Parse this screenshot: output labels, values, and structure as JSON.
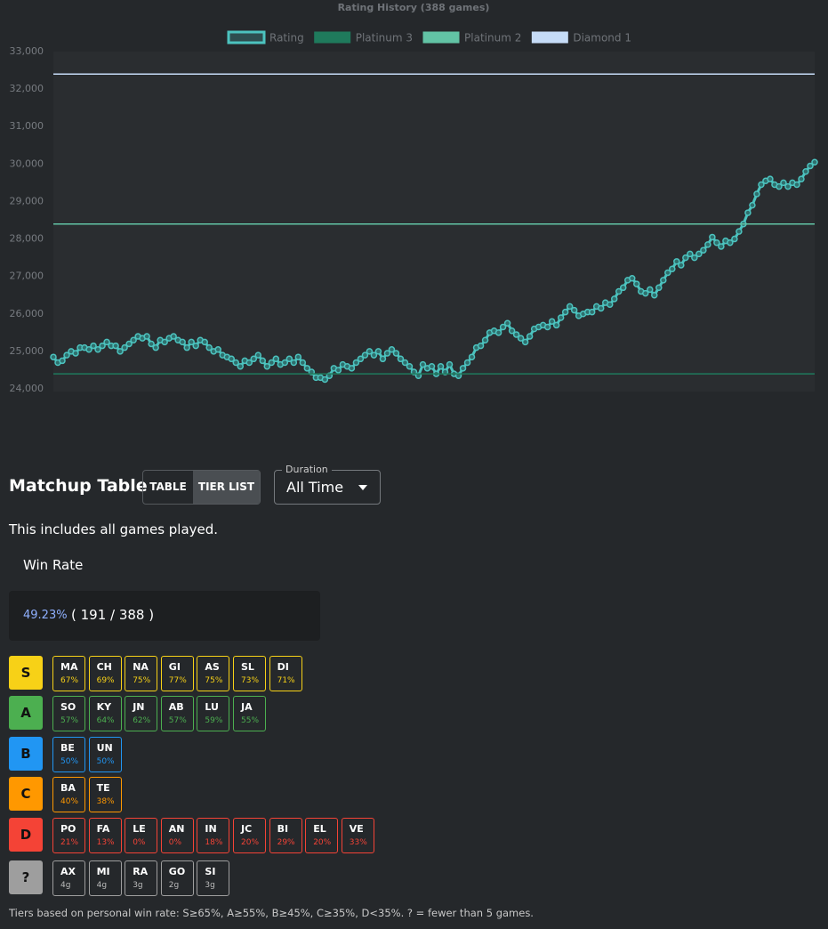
{
  "chart_data": {
    "type": "line",
    "title": "Rating History (388 games)",
    "ylim": [
      24000,
      33000
    ],
    "yticks": [
      {
        "value": 24000,
        "label": "24,000"
      },
      {
        "value": 25000,
        "label": "25,000"
      },
      {
        "value": 26000,
        "label": "26,000"
      },
      {
        "value": 27000,
        "label": "27,000"
      },
      {
        "value": 28000,
        "label": "28,000"
      },
      {
        "value": 29000,
        "label": "29,000"
      },
      {
        "value": 30000,
        "label": "30,000"
      },
      {
        "value": 31000,
        "label": "31,000"
      },
      {
        "value": 32000,
        "label": "32,000"
      },
      {
        "value": 33000,
        "label": "33,000"
      }
    ],
    "series": [
      {
        "name": "Rating",
        "color": "#4cc3bf",
        "values": [
          24850,
          24700,
          24750,
          24900,
          25000,
          24950,
          25100,
          25100,
          25050,
          25150,
          25050,
          25150,
          25250,
          25150,
          25150,
          25000,
          25100,
          25200,
          25300,
          25400,
          25350,
          25400,
          25200,
          25100,
          25300,
          25250,
          25350,
          25400,
          25300,
          25250,
          25100,
          25250,
          25150,
          25300,
          25250,
          25100,
          25000,
          25050,
          24900,
          24850,
          24800,
          24700,
          24600,
          24750,
          24700,
          24800,
          24900,
          24750,
          24600,
          24700,
          24800,
          24650,
          24700,
          24800,
          24700,
          24850,
          24700,
          24550,
          24450,
          24300,
          24300,
          24250,
          24350,
          24550,
          24500,
          24650,
          24600,
          24550,
          24700,
          24800,
          24900,
          25000,
          24900,
          25000,
          24800,
          24950,
          25050,
          24950,
          24800,
          24700,
          24600,
          24450,
          24350,
          24650,
          24550,
          24600,
          24400,
          24600,
          24450,
          24650,
          24400,
          24350,
          24550,
          24700,
          24850,
          25100,
          25150,
          25300,
          25500,
          25550,
          25500,
          25650,
          25750,
          25550,
          25450,
          25350,
          25250,
          25400,
          25600,
          25650,
          25700,
          25650,
          25800,
          25700,
          25900,
          26050,
          26200,
          26100,
          25950,
          26000,
          26050,
          26050,
          26200,
          26150,
          26300,
          26250,
          26400,
          26600,
          26700,
          26900,
          26950,
          26800,
          26600,
          26550,
          26650,
          26500,
          26700,
          26900,
          27100,
          27200,
          27400,
          27300,
          27500,
          27600,
          27500,
          27600,
          27700,
          27850,
          28050,
          27900,
          27800,
          27950,
          27900,
          28000,
          28200,
          28400,
          28700,
          28900,
          29200,
          29450,
          29550,
          29600,
          29450,
          29400,
          29500,
          29400,
          29500,
          29450,
          29600,
          29800,
          29950,
          30050
        ]
      },
      {
        "name": "Platinum 3",
        "color": "#1f7a5c",
        "value": 24400
      },
      {
        "name": "Platinum 2",
        "color": "#62c3a5",
        "value": 28400
      },
      {
        "name": "Diamond 1",
        "color": "#c6dcf7",
        "value": 32400
      }
    ],
    "grid": false
  },
  "matchup": {
    "title": "Matchup Table",
    "toggle": [
      "TABLE",
      "TIER LIST"
    ],
    "duration_label": "Duration",
    "duration_value": "All Time",
    "note": "This includes all games played.",
    "win_rate_label": "Win Rate",
    "win_rate_pct": "49.23%",
    "win_rate_record": "( 191 / 388 )",
    "tiers": [
      {
        "label": "S",
        "color": "#f7d117",
        "chips": [
          {
            "code": "MA",
            "stat": "67%"
          },
          {
            "code": "CH",
            "stat": "69%"
          },
          {
            "code": "NA",
            "stat": "75%"
          },
          {
            "code": "GI",
            "stat": "77%"
          },
          {
            "code": "AS",
            "stat": "75%"
          },
          {
            "code": "SL",
            "stat": "73%"
          },
          {
            "code": "DI",
            "stat": "71%"
          }
        ]
      },
      {
        "label": "A",
        "color": "#4caf50",
        "chips": [
          {
            "code": "SO",
            "stat": "57%"
          },
          {
            "code": "KY",
            "stat": "64%"
          },
          {
            "code": "JN",
            "stat": "62%"
          },
          {
            "code": "AB",
            "stat": "57%"
          },
          {
            "code": "LU",
            "stat": "59%"
          },
          {
            "code": "JA",
            "stat": "55%"
          }
        ]
      },
      {
        "label": "B",
        "color": "#2196f3",
        "chips": [
          {
            "code": "BE",
            "stat": "50%"
          },
          {
            "code": "UN",
            "stat": "50%"
          }
        ]
      },
      {
        "label": "C",
        "color": "#ff9800",
        "chips": [
          {
            "code": "BA",
            "stat": "40%"
          },
          {
            "code": "TE",
            "stat": "38%"
          }
        ]
      },
      {
        "label": "D",
        "color": "#f44336",
        "chips": [
          {
            "code": "PO",
            "stat": "21%"
          },
          {
            "code": "FA",
            "stat": "13%"
          },
          {
            "code": "LE",
            "stat": "0%"
          },
          {
            "code": "AN",
            "stat": "0%"
          },
          {
            "code": "IN",
            "stat": "18%"
          },
          {
            "code": "JC",
            "stat": "20%"
          },
          {
            "code": "BI",
            "stat": "29%"
          },
          {
            "code": "EL",
            "stat": "20%"
          },
          {
            "code": "VE",
            "stat": "33%"
          }
        ]
      },
      {
        "label": "?",
        "color": "#9e9e9e",
        "chips": [
          {
            "code": "AX",
            "stat": "4g"
          },
          {
            "code": "MI",
            "stat": "4g"
          },
          {
            "code": "RA",
            "stat": "3g"
          },
          {
            "code": "GO",
            "stat": "2g"
          },
          {
            "code": "SI",
            "stat": "3g"
          }
        ]
      }
    ],
    "footer": "Tiers based on personal win rate: S≥65%, A≥55%, B≥45%, C≥35%, D<35%. ? = fewer than 5 games."
  }
}
